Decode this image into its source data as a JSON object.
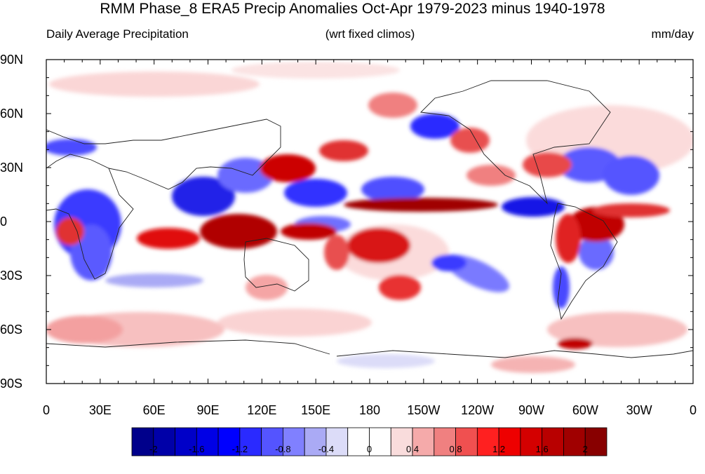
{
  "title": "RMM Phase_8 ERA5 Precip Anomalies Oct-Apr 1979-2023 minus 1940-1978",
  "subtitle_left": "Daily Average Precipitation",
  "subtitle_center": "(wrt fixed climos)",
  "subtitle_right": "mm/day",
  "lat_labels": [
    "90N",
    "60N",
    "30N",
    "0",
    "30S",
    "60S",
    "90S"
  ],
  "lon_labels": [
    "0",
    "30E",
    "60E",
    "90E",
    "120E",
    "150E",
    "180",
    "150W",
    "120W",
    "90W",
    "60W",
    "30W",
    "0"
  ],
  "colorbar": {
    "colors": [
      "#00008b",
      "#0000a8",
      "#0000c8",
      "#0000e6",
      "#0000ff",
      "#2a2aff",
      "#5454ff",
      "#8080ff",
      "#aaaaf5",
      "#dcdcf8",
      "#ffffff",
      "#ffffff",
      "#f9dcdc",
      "#f5aaaa",
      "#f08080",
      "#f05050",
      "#ff2020",
      "#ee0000",
      "#d40000",
      "#b80000",
      "#a00000",
      "#880000"
    ],
    "tick_labels": [
      "-2",
      "-1.6",
      "-1.2",
      "-0.8",
      "-0.4",
      "0",
      "0.4",
      "0.8",
      "1.2",
      "1.6",
      "2"
    ]
  }
}
